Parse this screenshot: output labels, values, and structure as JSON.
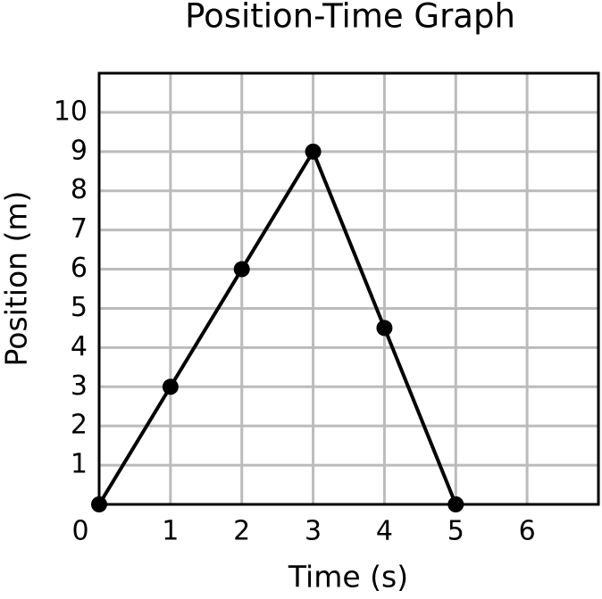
{
  "chart_data": {
    "type": "line",
    "title": "Position-Time Graph",
    "x_label": "Time (s)",
    "y_label": "Position (m)",
    "x": [
      0,
      1,
      2,
      3,
      4,
      5
    ],
    "series": [
      {
        "name": "Position",
        "color": "#000000",
        "values": [
          0,
          3,
          6,
          9,
          4.5,
          0
        ]
      }
    ],
    "xlim": [
      0,
      7
    ],
    "ylim": [
      0,
      11
    ],
    "xticks": [
      0,
      1,
      2,
      3,
      4,
      5,
      6
    ],
    "yticks": [
      1,
      2,
      3,
      4,
      5,
      6,
      7,
      8,
      9,
      10
    ],
    "grid": true
  }
}
